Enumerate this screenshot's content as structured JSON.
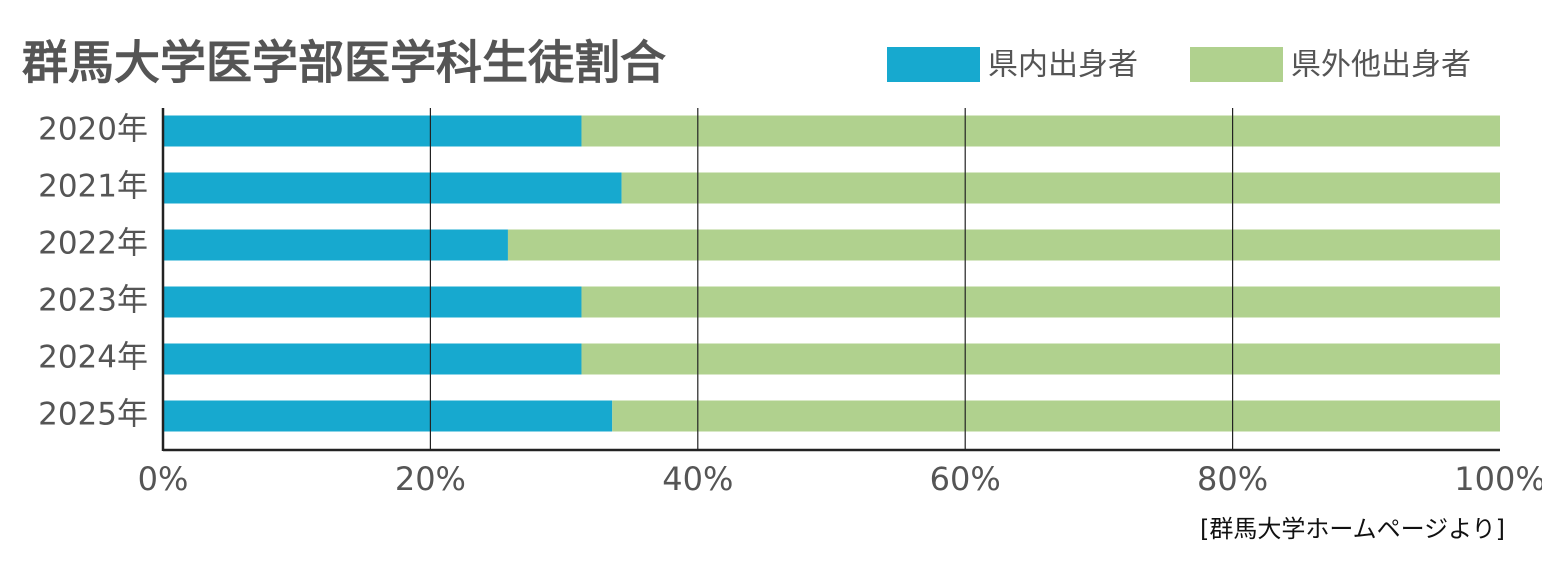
{
  "chart_data": {
    "type": "stacked-bar-horizontal",
    "title": "群馬大学医学部医学科生徒割合",
    "source": "[群馬大学ホームページより]",
    "categories": [
      "2020年",
      "2021年",
      "2022年",
      "2023年",
      "2024年",
      "2025年"
    ],
    "series": [
      {
        "name": "県内出身者",
        "color": "#17a9cf",
        "values": [
          31.3,
          34.3,
          25.8,
          31.3,
          31.3,
          33.6
        ]
      },
      {
        "name": "県外他出身者",
        "color": "#b0d18e",
        "values": [
          68.7,
          65.7,
          74.2,
          68.7,
          68.7,
          66.4
        ]
      }
    ],
    "xlim": [
      0,
      100
    ],
    "xticks": [
      {
        "value": 0,
        "label": "0%"
      },
      {
        "value": 20,
        "label": "20%"
      },
      {
        "value": 40,
        "label": "40%"
      },
      {
        "value": 60,
        "label": "60%"
      },
      {
        "value": 80,
        "label": "80%"
      },
      {
        "value": 100,
        "label": "100%"
      }
    ],
    "grid": true
  }
}
